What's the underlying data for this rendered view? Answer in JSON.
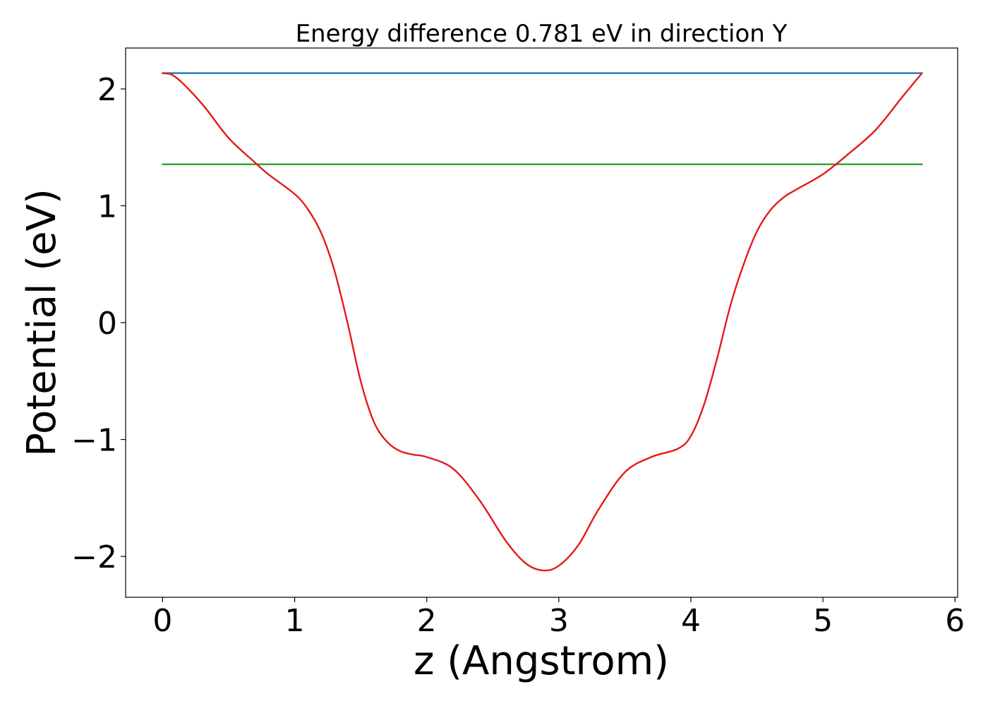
{
  "chart_data": {
    "type": "line",
    "title": "Energy difference 0.781 eV in direction Y",
    "xlabel": "z (Angstrom)",
    "ylabel": "Potential (eV)",
    "xlim": [
      -0.28,
      6.02
    ],
    "ylim": [
      -2.35,
      2.35
    ],
    "xticks": [
      0,
      1,
      2,
      3,
      4,
      5,
      6
    ],
    "yticks": [
      -2,
      -1,
      0,
      1,
      2
    ],
    "grid": false,
    "series": [
      {
        "color": "#1f77b4",
        "x": [
          0,
          5.75
        ],
        "y": [
          2.135,
          2.135
        ]
      },
      {
        "color": "#2ca02c",
        "x": [
          0,
          5.75
        ],
        "y": [
          1.355,
          1.355
        ]
      },
      {
        "color": "#e41a1c",
        "x": [
          0,
          0.1,
          0.3,
          0.5,
          0.7,
          0.8,
          1.0,
          1.1,
          1.2,
          1.3,
          1.4,
          1.5,
          1.6,
          1.7,
          1.8,
          1.9,
          2.0,
          2.2,
          2.4,
          2.6,
          2.75,
          2.88,
          3.0,
          3.15,
          3.3,
          3.5,
          3.7,
          3.9,
          4.0,
          4.1,
          4.2,
          4.3,
          4.4,
          4.5,
          4.6,
          4.7,
          4.8,
          5.0,
          5.2,
          5.4,
          5.6,
          5.75
        ],
        "y": [
          2.135,
          2.1,
          1.87,
          1.58,
          1.37,
          1.27,
          1.1,
          0.97,
          0.77,
          0.45,
          0.0,
          -0.5,
          -0.85,
          -1.02,
          -1.1,
          -1.13,
          -1.15,
          -1.25,
          -1.52,
          -1.87,
          -2.06,
          -2.12,
          -2.08,
          -1.9,
          -1.6,
          -1.28,
          -1.15,
          -1.08,
          -0.97,
          -0.7,
          -0.3,
          0.15,
          0.5,
          0.78,
          0.96,
          1.07,
          1.14,
          1.27,
          1.45,
          1.65,
          1.93,
          2.135
        ]
      }
    ]
  }
}
